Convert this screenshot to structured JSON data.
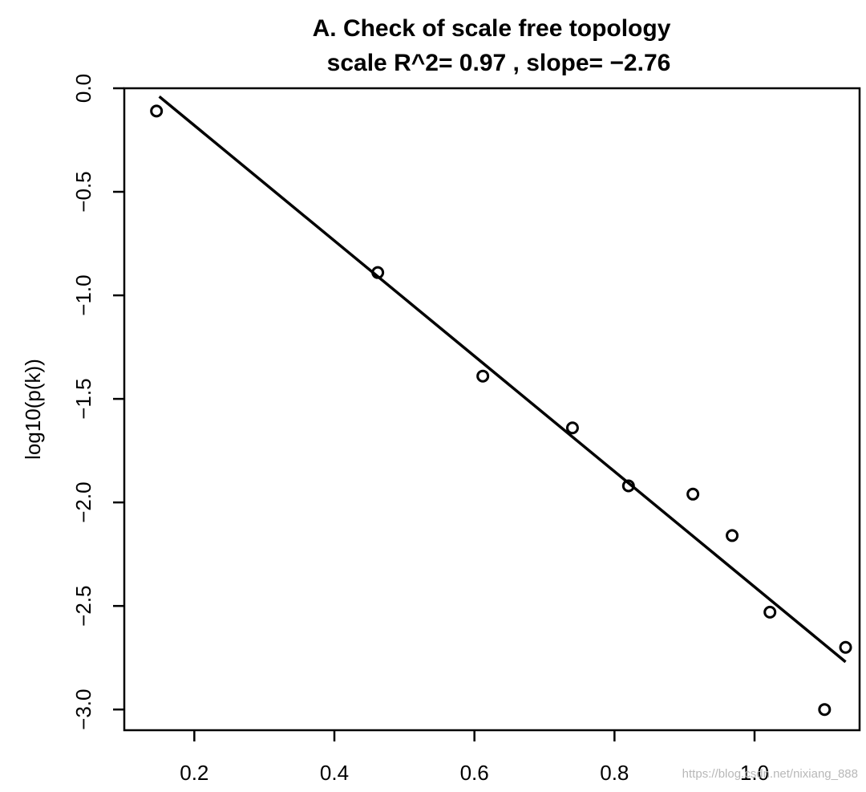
{
  "chart_data": {
    "type": "scatter",
    "title": "A. Check of scale free topology",
    "subtitle": "scale R^2= 0.97 , slope= −2.76",
    "xlabel": "",
    "ylabel": "log10(p(k))",
    "xlim": [
      0.1,
      1.15
    ],
    "ylim": [
      -3.1,
      0.0
    ],
    "x_ticks": [
      0.2,
      0.4,
      0.6,
      0.8,
      1.0
    ],
    "x_tick_labels": [
      "0.2",
      "0.4",
      "0.6",
      "0.8",
      "1.0"
    ],
    "y_ticks": [
      0.0,
      -0.5,
      -1.0,
      -1.5,
      -2.0,
      -2.5,
      -3.0
    ],
    "y_tick_labels": [
      "0.0",
      "−0.5",
      "−1.0",
      "−1.5",
      "−2.0",
      "−2.5",
      "−3.0"
    ],
    "grid": false,
    "legend": "none",
    "points": [
      {
        "x": 0.146,
        "y": -0.11
      },
      {
        "x": 0.462,
        "y": -0.89
      },
      {
        "x": 0.612,
        "y": -1.39
      },
      {
        "x": 0.74,
        "y": -1.64
      },
      {
        "x": 0.82,
        "y": -1.92
      },
      {
        "x": 0.912,
        "y": -1.96
      },
      {
        "x": 0.968,
        "y": -2.16
      },
      {
        "x": 1.022,
        "y": -2.53
      },
      {
        "x": 1.1,
        "y": -3.0
      },
      {
        "x": 1.13,
        "y": -2.7
      }
    ],
    "fit_line": {
      "x": [
        0.15,
        1.13
      ],
      "y": [
        -0.04,
        -2.77
      ]
    },
    "colors": {
      "points": "#000000",
      "line": "#000000",
      "frame": "#000000"
    }
  },
  "watermark": "https://blog.csdn.net/nixiang_888"
}
